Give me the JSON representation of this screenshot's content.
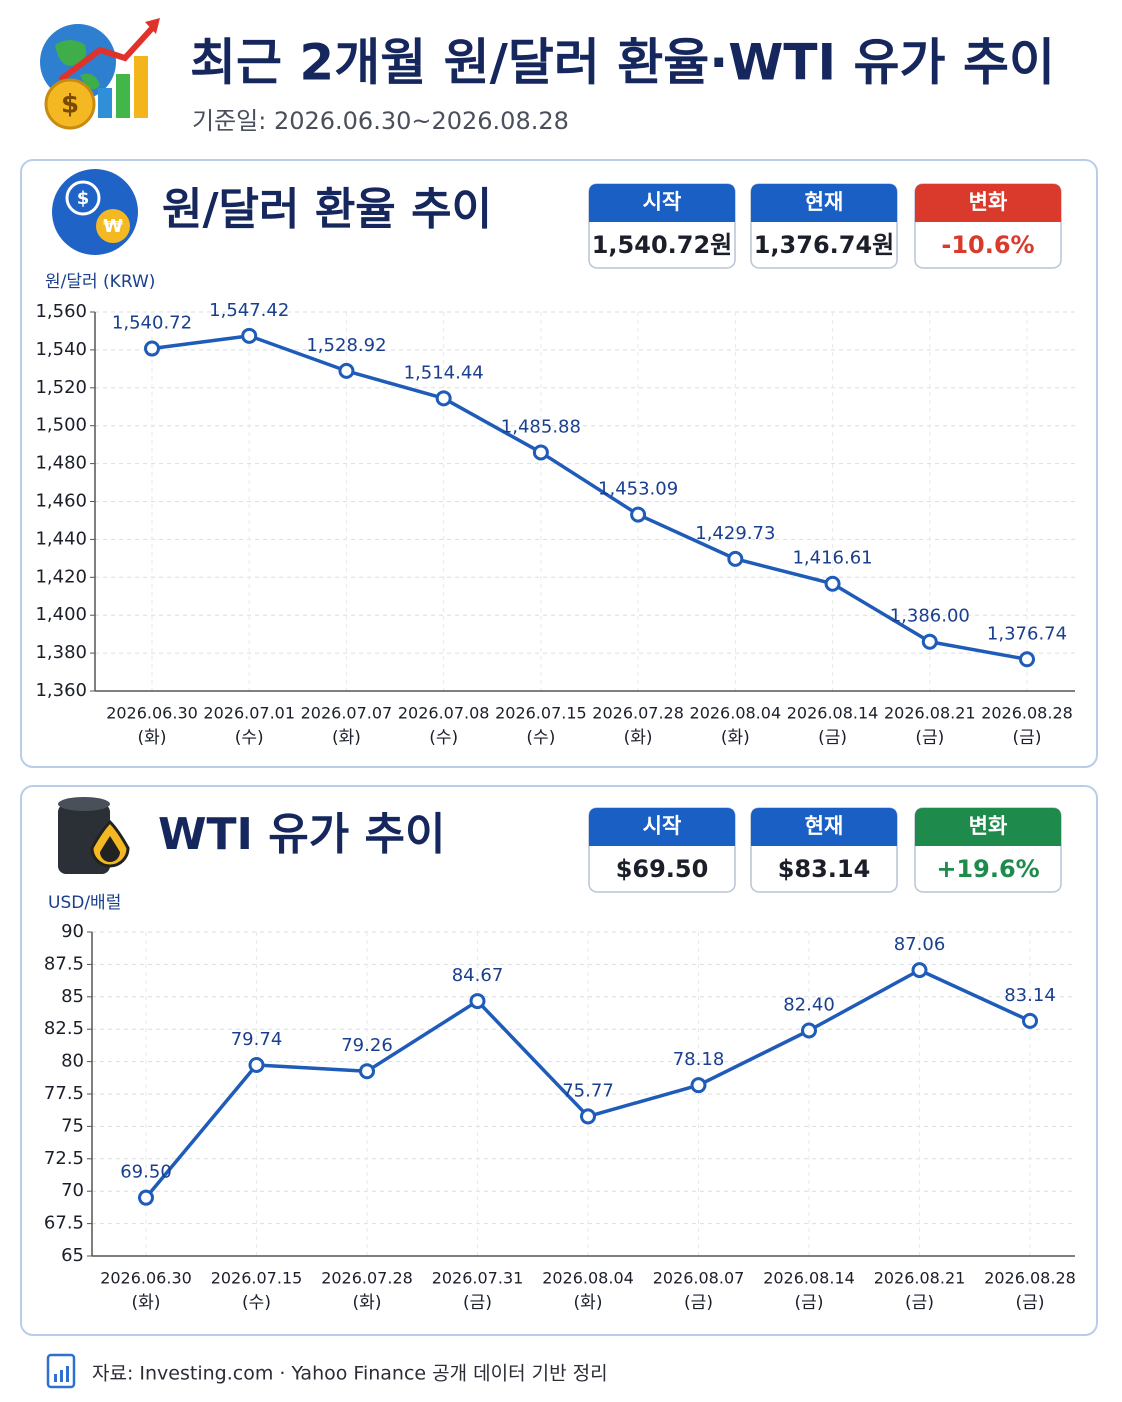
{
  "header": {
    "title": "최근 2개월 원/달러 환율·WTI 유가 추이",
    "subtitle": "기준일: 2026.06.30~2026.08.28"
  },
  "chart_data": [
    {
      "type": "line",
      "title": "원/달러 환율 추이",
      "y_label": "원/달러 (KRW)",
      "stats": [
        {
          "label": "시작",
          "value": "1,540.72원",
          "color": "#1a5fc4"
        },
        {
          "label": "현재",
          "value": "1,376.74원",
          "color": "#1a5fc4"
        },
        {
          "label": "변화",
          "value": "-10.6%",
          "color": "#d93a2b"
        }
      ],
      "categories": [
        "2026.06.30",
        "2026.07.01",
        "2026.07.07",
        "2026.07.08",
        "2026.07.15",
        "2026.07.28",
        "2026.08.04",
        "2026.08.14",
        "2026.08.21",
        "2026.08.28"
      ],
      "category_days": [
        "(화)",
        "(수)",
        "(화)",
        "(수)",
        "(수)",
        "(화)",
        "(화)",
        "(금)",
        "(금)",
        "(금)"
      ],
      "values": [
        1540.72,
        1547.42,
        1528.92,
        1514.44,
        1485.88,
        1453.09,
        1429.73,
        1416.61,
        1386.0,
        1376.74
      ],
      "value_labels": [
        "1,540.72",
        "1,547.42",
        "1,528.92",
        "1,514.44",
        "1,485.88",
        "1,453.09",
        "1,429.73",
        "1,416.61",
        "1,386.00",
        "1,376.74"
      ],
      "color": "#1f5bb8",
      "ylim": [
        1360,
        1560
      ],
      "yticks": [
        {
          "value": 1360,
          "label": "1,360"
        },
        {
          "value": 1380,
          "label": "1,380"
        },
        {
          "value": 1400,
          "label": "1,400"
        },
        {
          "value": 1420,
          "label": "1,420"
        },
        {
          "value": 1440,
          "label": "1,440"
        },
        {
          "value": 1460,
          "label": "1,460"
        },
        {
          "value": 1480,
          "label": "1,480"
        },
        {
          "value": 1500,
          "label": "1,500"
        },
        {
          "value": 1520,
          "label": "1,520"
        },
        {
          "value": 1540,
          "label": "1,540"
        },
        {
          "value": 1560,
          "label": "1,560"
        }
      ],
      "grid": true
    },
    {
      "type": "line",
      "title": "WTI 유가 추이",
      "y_label": "USD/배럴",
      "stats": [
        {
          "label": "시작",
          "value": "$69.50",
          "color": "#1a5fc4"
        },
        {
          "label": "현재",
          "value": "$83.14",
          "color": "#1a5fc4"
        },
        {
          "label": "변화",
          "value": "+19.6%",
          "color": "#1e8a4c"
        }
      ],
      "categories": [
        "2026.06.30",
        "2026.07.15",
        "2026.07.28",
        "2026.07.31",
        "2026.08.04",
        "2026.08.07",
        "2026.08.14",
        "2026.08.21",
        "2026.08.28"
      ],
      "category_days": [
        "(화)",
        "(수)",
        "(화)",
        "(금)",
        "(화)",
        "(금)",
        "(금)",
        "(금)",
        "(금)"
      ],
      "values": [
        69.5,
        79.74,
        79.26,
        84.67,
        75.77,
        78.18,
        82.4,
        87.06,
        83.14
      ],
      "value_labels": [
        "69.50",
        "79.74",
        "79.26",
        "84.67",
        "75.77",
        "78.18",
        "82.40",
        "87.06",
        "83.14"
      ],
      "color": "#1f5bb8",
      "ylim": [
        65,
        90
      ],
      "yticks": [
        65,
        67.5,
        70,
        72.5,
        75,
        77.5,
        80,
        82.5,
        85,
        87.5,
        90
      ],
      "grid": true
    }
  ],
  "footer": {
    "source": "자료: Investing.com · Yahoo Finance 공개 데이터 기반 정리"
  }
}
